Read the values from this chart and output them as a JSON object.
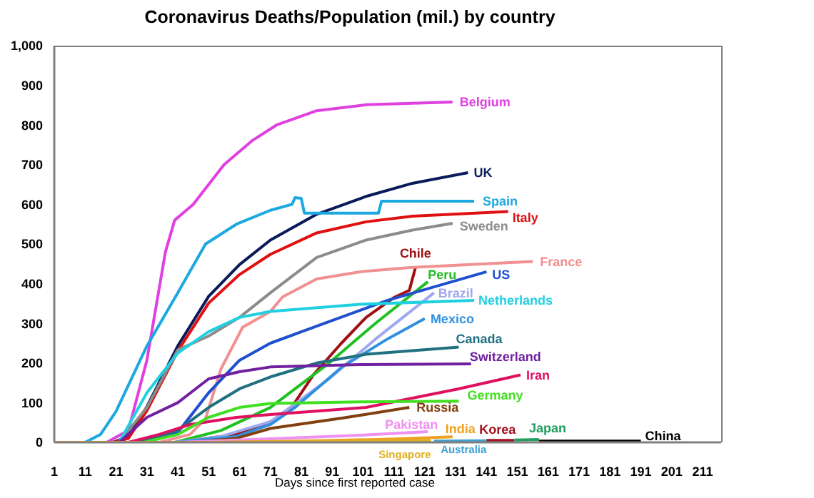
{
  "chart_data": {
    "type": "line",
    "title": "Coronavirus Deaths/Population (mil.) by country",
    "xlabel": "Days since first reported case",
    "xlim": [
      1,
      217
    ],
    "xticks": [
      1,
      11,
      21,
      31,
      41,
      51,
      61,
      71,
      81,
      91,
      101,
      111,
      121,
      131,
      141,
      151,
      161,
      171,
      181,
      191,
      201,
      211
    ],
    "ylim": [
      0,
      1000
    ],
    "yticks": [
      0,
      100,
      200,
      300,
      400,
      500,
      600,
      700,
      800,
      900,
      {
        "value": 1000,
        "label": "1,000"
      }
    ],
    "grid": false,
    "legend": false,
    "marker": "none",
    "line_style": "solid",
    "series": [
      {
        "name": "Belgium",
        "color": "#e040e0",
        "x": [
          18,
          25,
          31,
          37,
          40,
          46,
          56,
          65,
          73,
          86,
          102,
          130
        ],
        "values": [
          0,
          30,
          207,
          480,
          560,
          600,
          700,
          760,
          800,
          836,
          851,
          858
        ]
      },
      {
        "name": "UK",
        "color": "#0a1a5a",
        "x": [
          20,
          25,
          31,
          41,
          51,
          61,
          71,
          86,
          102,
          117,
          135
        ],
        "values": [
          0,
          15,
          90,
          243,
          368,
          448,
          510,
          575,
          620,
          653,
          680
        ]
      },
      {
        "name": "Spain",
        "color": "#1ca8e0",
        "x": [
          11,
          16,
          21,
          31,
          41,
          50,
          60,
          71,
          78,
          79,
          81,
          82,
          106,
          107,
          137
        ],
        "values": [
          0,
          20,
          78,
          243,
          377,
          500,
          550,
          585,
          600,
          617,
          615,
          578,
          578,
          608,
          608
        ]
      },
      {
        "name": "Italy",
        "color": "#e01010",
        "x": [
          20,
          25,
          31,
          41,
          51,
          61,
          71,
          86,
          102,
          117,
          148
        ],
        "values": [
          0,
          10,
          80,
          230,
          351,
          423,
          474,
          528,
          556,
          570,
          582
        ]
      },
      {
        "name": "Sweden",
        "color": "#8c8c8c",
        "x": [
          22,
          31,
          41,
          51,
          61,
          71,
          86,
          102,
          117,
          130
        ],
        "values": [
          0,
          88,
          233,
          268,
          315,
          377,
          466,
          510,
          535,
          552
        ]
      },
      {
        "name": "Chile",
        "color": "#a01010",
        "x": [
          40,
          60,
          71,
          77,
          85,
          94,
          102,
          111,
          116,
          118
        ],
        "values": [
          0,
          20,
          52,
          78,
          171,
          250,
          315,
          365,
          383,
          441
        ]
      },
      {
        "name": "Peru",
        "color": "#20c020",
        "x": [
          40,
          55,
          71,
          90,
          105,
          122
        ],
        "values": [
          0,
          30,
          88,
          200,
          300,
          405
        ]
      },
      {
        "name": "France",
        "color": "#f09090",
        "x": [
          35,
          45,
          50,
          55,
          62,
          71,
          75,
          86,
          100,
          117,
          156
        ],
        "values": [
          0,
          20,
          60,
          185,
          290,
          330,
          367,
          412,
          430,
          441,
          456
        ]
      },
      {
        "name": "US",
        "color": "#2050d0",
        "x": [
          30,
          41,
          51,
          61,
          71,
          86,
          109,
          141
        ],
        "values": [
          0,
          25,
          125,
          207,
          250,
          293,
          358,
          430
        ]
      },
      {
        "name": "Brazil",
        "color": "#a0a8f0",
        "x": [
          40,
          55,
          71,
          90,
          105,
          124
        ],
        "values": [
          0,
          15,
          52,
          160,
          260,
          377
        ]
      },
      {
        "name": "Netherlands",
        "color": "#20d0e0",
        "x": [
          22,
          31,
          41,
          51,
          61,
          71,
          100,
          137
        ],
        "values": [
          0,
          125,
          225,
          279,
          315,
          330,
          348,
          358
        ]
      },
      {
        "name": "Mexico",
        "color": "#3090e0",
        "x": [
          40,
          60,
          71,
          79,
          94,
          109,
          121
        ],
        "values": [
          0,
          15,
          45,
          88,
          189,
          261,
          312
        ]
      },
      {
        "name": "Canada",
        "color": "#207080",
        "x": [
          28,
          41,
          51,
          61,
          71,
          86,
          102,
          132
        ],
        "values": [
          0,
          30,
          88,
          135,
          165,
          200,
          222,
          240
        ]
      },
      {
        "name": "Switzerland",
        "color": "#7020a0",
        "x": [
          22,
          31,
          41,
          51,
          61,
          71,
          100,
          136
        ],
        "values": [
          0,
          63,
          100,
          160,
          178,
          190,
          196,
          198
        ]
      },
      {
        "name": "Iran",
        "color": "#e01060",
        "x": [
          25,
          35,
          45,
          60,
          71,
          102,
          132,
          152
        ],
        "values": [
          0,
          20,
          45,
          63,
          70,
          88,
          135,
          170
        ]
      },
      {
        "name": "Germany",
        "color": "#40e020",
        "x": [
          30,
          41,
          51,
          61,
          71,
          100,
          132
        ],
        "values": [
          0,
          20,
          63,
          88,
          98,
          102,
          104
        ]
      },
      {
        "name": "Russia",
        "color": "#804010",
        "x": [
          45,
          60,
          71,
          95,
          116
        ],
        "values": [
          0,
          10,
          35,
          62,
          88
        ]
      },
      {
        "name": "Pakistan",
        "color": "#f090f0",
        "x": [
          40,
          71,
          100,
          122
        ],
        "values": [
          0,
          9,
          18,
          27
        ]
      },
      {
        "name": "India",
        "color": "#f0a020",
        "x": [
          1,
          50,
          80,
          110,
          130
        ],
        "values": [
          0,
          0,
          3,
          8,
          14
        ]
      },
      {
        "name": "Singapore",
        "color": "#e0b020",
        "x": [
          60,
          123
        ],
        "values": [
          0,
          5
        ]
      },
      {
        "name": "Australia",
        "color": "#40a0d0",
        "x": [
          124,
          141
        ],
        "values": [
          3,
          4
        ]
      },
      {
        "name": "Korea",
        "color": "#a01020",
        "x": [
          141,
          150
        ],
        "values": [
          5,
          5
        ]
      },
      {
        "name": "Japan",
        "color": "#20a060",
        "x": [
          150,
          158
        ],
        "values": [
          6,
          7
        ]
      },
      {
        "name": "China",
        "color": "#000000",
        "x": [
          158,
          191
        ],
        "values": [
          3,
          3
        ]
      }
    ]
  }
}
